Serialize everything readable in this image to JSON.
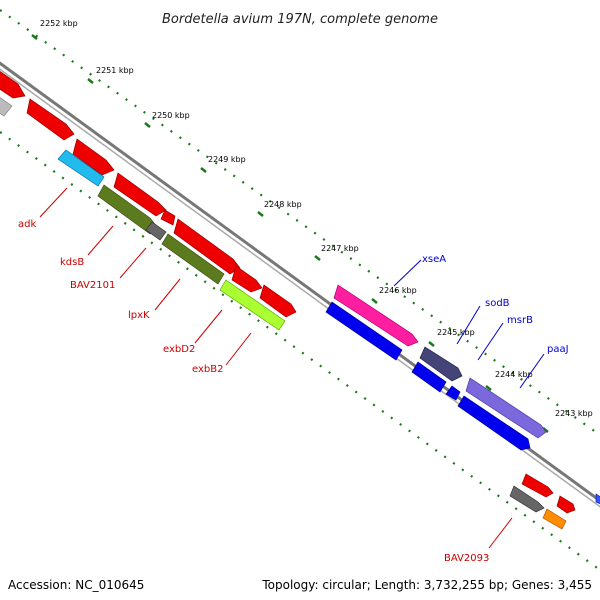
{
  "title": "Bordetella avium 197N, complete genome",
  "footer": {
    "accession": "Accession: NC_010645",
    "summary": "Topology: circular; Length: 3,732,255 bp; Genes: 3,455"
  },
  "colors": {
    "backbone": "#888888",
    "tick": "#1a7a1a",
    "forward_label": "#cc0000",
    "reverse_label": "#0000cc"
  },
  "ticks": [
    {
      "label": "2252 kbp"
    },
    {
      "label": "2251 kbp"
    },
    {
      "label": "2250 kbp"
    },
    {
      "label": "2249 kbp"
    },
    {
      "label": "2248 kbp"
    },
    {
      "label": "2247 kbp"
    },
    {
      "label": "2246 kbp"
    },
    {
      "label": "2245 kbp"
    },
    {
      "label": "2244 kbp"
    },
    {
      "label": "2243 kbp"
    }
  ],
  "labels_left": [
    {
      "text": "adk"
    },
    {
      "text": "kdsB"
    },
    {
      "text": "BAV2101"
    },
    {
      "text": "lpxK"
    },
    {
      "text": "exbD2"
    },
    {
      "text": "exbB2"
    },
    {
      "text": "BAV2093"
    }
  ],
  "labels_right": [
    {
      "text": "xseA"
    },
    {
      "text": "sodB"
    },
    {
      "text": "msrB"
    },
    {
      "text": "paaJ"
    }
  ]
}
